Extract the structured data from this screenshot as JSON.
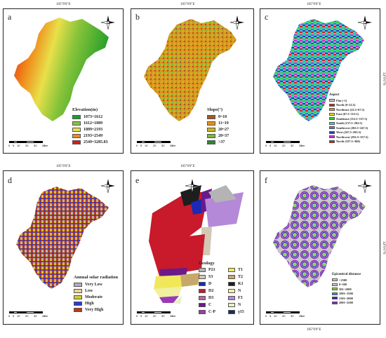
{
  "coords": {
    "top": "105°0'0\"E",
    "side": "34°0'0\"N"
  },
  "scale": {
    "unit": "km",
    "ticks": [
      "0",
      "5",
      "10",
      "20",
      "30",
      "40"
    ]
  },
  "north": {
    "n": "N",
    "s": "S",
    "e": "E",
    "w": "W"
  },
  "panels": {
    "a": {
      "label": "a",
      "legend_title": "Elevation(m)",
      "items": [
        {
          "label": "1073~1612",
          "color": "#1e9e2a"
        },
        {
          "label": "1612~1889",
          "color": "#8ac43a"
        },
        {
          "label": "1889~2193",
          "color": "#e8e04a"
        },
        {
          "label": "2193~2549",
          "color": "#f08a1a"
        },
        {
          "label": "2549~3285.83",
          "color": "#e01a10"
        }
      ]
    },
    "b": {
      "label": "b",
      "legend_title": "Slope(°)",
      "items": [
        {
          "label": "0~10",
          "color": "#9c5a2a"
        },
        {
          "label": "11~19",
          "color": "#e8901a"
        },
        {
          "label": "20~27",
          "color": "#c8b42a"
        },
        {
          "label": "28~37",
          "color": "#7ab83a"
        },
        {
          "label": ">37",
          "color": "#2a8a2a"
        }
      ]
    },
    "c": {
      "label": "c",
      "legend_title": "Aspect",
      "items": [
        {
          "label": "Flat (-1)",
          "color": "#c8c8c8"
        },
        {
          "label": "North (0~22.5)",
          "color": "#e01a10"
        },
        {
          "label": "Northeast (22.5~67.5)",
          "color": "#f08a1a"
        },
        {
          "label": "East (67.5~112.5)",
          "color": "#f0e01a"
        },
        {
          "label": "Southeast (112.5~157.5)",
          "color": "#3ad03a"
        },
        {
          "label": "South (157.5~202.5)",
          "color": "#3ad0d0"
        },
        {
          "label": "Southwest (202.5~247.5)",
          "color": "#3a8ae0"
        },
        {
          "label": "West (247.5~292.5)",
          "color": "#2a3ab8"
        },
        {
          "label": "Northwest (292.5~337.5)",
          "color": "#d02ad0"
        },
        {
          "label": "North (337.5~360)",
          "color": "#e01a10"
        }
      ]
    },
    "d": {
      "label": "d",
      "legend_title": "Annual solar radiation",
      "items": [
        {
          "label": "Very Low",
          "color": "#b4aac8"
        },
        {
          "label": "Low",
          "color": "#f0d28a"
        },
        {
          "label": "Moderate",
          "color": "#d2c83a"
        },
        {
          "label": "High",
          "color": "#2a3ad0"
        },
        {
          "label": "Very High",
          "color": "#b43a1a"
        }
      ]
    },
    "e": {
      "label": "e",
      "legend_title": "Geology",
      "items": [
        {
          "label": "P21",
          "color": "#b4b4b4"
        },
        {
          "label": "T1",
          "color": "#f0e85a"
        },
        {
          "label": "S3",
          "color": "#d2c8b4"
        },
        {
          "label": "T2",
          "color": "#c8a86a"
        },
        {
          "label": "D",
          "color": "#1a2ab4"
        },
        {
          "label": "K1",
          "color": "#1e1e1e"
        },
        {
          "label": "D2",
          "color": "#c81a2a"
        },
        {
          "label": "N",
          "color": "#f0f0a0"
        },
        {
          "label": "D3",
          "color": "#b46aa0"
        },
        {
          "label": "F3",
          "color": "#b48ad8"
        },
        {
          "label": "C",
          "color": "#6a1a8a"
        },
        {
          "label": "N",
          "color": "#e8f0c8"
        },
        {
          "label": "C-P",
          "color": "#9a3ab4"
        },
        {
          "label": "γ15",
          "color": "#1a2a5a"
        }
      ]
    },
    "f": {
      "label": "f",
      "legend_title": "Epicentral distance",
      "items": [
        {
          "label": ">2500",
          "color": "#c8c8c8"
        },
        {
          "label": "0~500",
          "color": "#c8c8c8"
        },
        {
          "label": "501~1000",
          "color": "#8ad03a"
        },
        {
          "label": "1001~1500",
          "color": "#3a8ae0"
        },
        {
          "label": "1501~2000",
          "color": "#2a2ab4"
        },
        {
          "label": "2001~2500",
          "color": "#8a2ab4"
        }
      ]
    }
  }
}
